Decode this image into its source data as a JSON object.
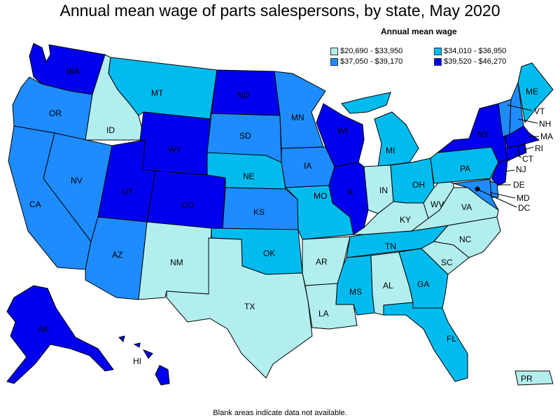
{
  "title": "Annual mean wage of parts salespersons, by state, May 2020",
  "legend": {
    "title": "Annual mean wage",
    "items": [
      {
        "label": "$20,690 - $33,950",
        "color": "#b2eeee"
      },
      {
        "label": "$34,010 - $36,950",
        "color": "#00bbee"
      },
      {
        "label": "$37,050 - $39,170",
        "color": "#1e8cff"
      },
      {
        "label": "$39,520 - $46,270",
        "color": "#0000ee"
      }
    ]
  },
  "footnote": "Blank areas indicate data not available.",
  "states": {
    "WA": {
      "label": "WA",
      "bin": 3
    },
    "OR": {
      "label": "OR",
      "bin": 2
    },
    "CA": {
      "label": "CA",
      "bin": 2
    },
    "ID": {
      "label": "ID",
      "bin": 0
    },
    "NV": {
      "label": "NV",
      "bin": 2
    },
    "MT": {
      "label": "MT",
      "bin": 1
    },
    "WY": {
      "label": "WY",
      "bin": 3
    },
    "UT": {
      "label": "UT",
      "bin": 3
    },
    "AZ": {
      "label": "AZ",
      "bin": 2
    },
    "CO": {
      "label": "CO",
      "bin": 3
    },
    "NM": {
      "label": "NM",
      "bin": 0
    },
    "ND": {
      "label": "ND",
      "bin": 3
    },
    "SD": {
      "label": "SD",
      "bin": 2
    },
    "NE": {
      "label": "NE",
      "bin": 1
    },
    "KS": {
      "label": "KS",
      "bin": 2
    },
    "OK": {
      "label": "OK",
      "bin": 1
    },
    "TX": {
      "label": "TX",
      "bin": 0
    },
    "MN": {
      "label": "MN",
      "bin": 2
    },
    "IA": {
      "label": "IA",
      "bin": 2
    },
    "MO": {
      "label": "MO",
      "bin": 1
    },
    "AR": {
      "label": "AR",
      "bin": 0
    },
    "LA": {
      "label": "LA",
      "bin": 0
    },
    "WI": {
      "label": "WI",
      "bin": 3
    },
    "IL": {
      "label": "IL",
      "bin": 3
    },
    "MI": {
      "label": "MI",
      "bin": 1
    },
    "IN": {
      "label": "IN",
      "bin": 0
    },
    "OH": {
      "label": "OH",
      "bin": 1
    },
    "KY": {
      "label": "KY",
      "bin": 0
    },
    "TN": {
      "label": "TN",
      "bin": 1
    },
    "MS": {
      "label": "MS",
      "bin": 1
    },
    "AL": {
      "label": "AL",
      "bin": 0
    },
    "GA": {
      "label": "GA",
      "bin": 1
    },
    "FL": {
      "label": "FL",
      "bin": 1
    },
    "SC": {
      "label": "SC",
      "bin": 0
    },
    "NC": {
      "label": "NC",
      "bin": 0
    },
    "VA": {
      "label": "VA",
      "bin": 0
    },
    "WV": {
      "label": "WV",
      "bin": 0
    },
    "PA": {
      "label": "PA",
      "bin": 1
    },
    "NY": {
      "label": "NY",
      "bin": 3
    },
    "ME": {
      "label": "ME",
      "bin": 1
    },
    "VT": {
      "label": "VT",
      "bin": 2
    },
    "NH": {
      "label": "NH",
      "bin": 2
    },
    "MA": {
      "label": "MA",
      "bin": 3
    },
    "RI": {
      "label": "RI",
      "bin": 3
    },
    "CT": {
      "label": "CT",
      "bin": 3
    },
    "NJ": {
      "label": "NJ",
      "bin": 3
    },
    "DE": {
      "label": "DE",
      "bin": 2
    },
    "MD": {
      "label": "MD",
      "bin": 2
    },
    "DC": {
      "label": "DC",
      "bin": 2
    },
    "AK": {
      "label": "AK",
      "bin": 3
    },
    "HI": {
      "label": "HI",
      "bin": 3
    },
    "PR": {
      "label": "PR",
      "bin": 0
    }
  }
}
